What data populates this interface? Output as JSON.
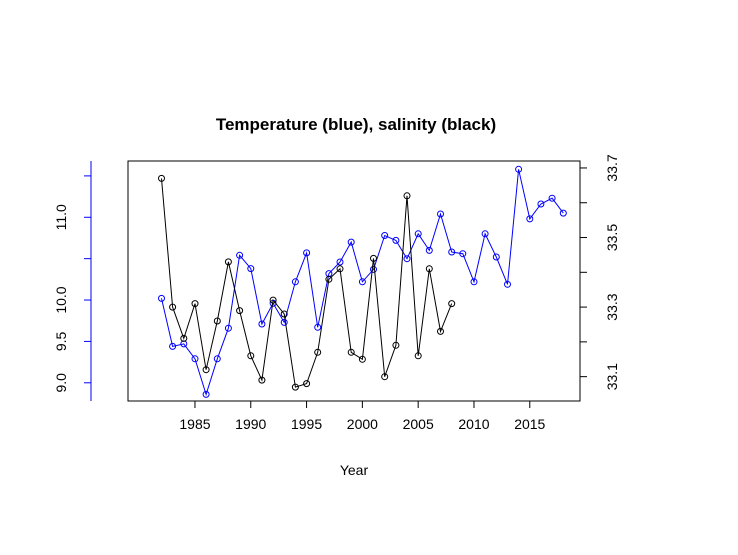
{
  "chart_data": {
    "type": "line",
    "title": "Temperature (blue), salinity (black)",
    "xlabel": "Year",
    "ylabel_left": "",
    "ylabel_right": "",
    "xlim": [
      1979,
      2019.5
    ],
    "ylim_left": [
      8.78,
      11.68
    ],
    "ylim_right": [
      33.03,
      33.72
    ],
    "x_ticks": [
      1985,
      1990,
      1995,
      2000,
      2005,
      2010,
      2015
    ],
    "y_left_ticks": [
      9.0,
      9.5,
      10.0,
      11.0
    ],
    "y_left_minor_ticks": [
      10.5,
      11.5
    ],
    "y_right_ticks": [
      33.1,
      33.3,
      33.5,
      33.7
    ],
    "y_right_minor_ticks": [
      33.2,
      33.4,
      33.6
    ],
    "grid": false,
    "colors": {
      "temperature": "#0000ff",
      "salinity": "#000000",
      "left_axis": "#0000ff"
    },
    "series": [
      {
        "name": "",
        "axis": "left",
        "color": "#0000ff",
        "x": [
          1982,
          1983,
          1984,
          1985,
          1986,
          1987,
          1988,
          1989,
          1990,
          1991,
          1992,
          1993,
          1994,
          1995,
          1996,
          1997,
          1998,
          1999,
          2000,
          2001,
          2002,
          2003,
          2004,
          2005,
          2006,
          2007,
          2008,
          2009,
          2010,
          2011,
          2012,
          2013,
          2014,
          2015,
          2016,
          2017,
          2018
        ],
        "y": [
          10.02,
          9.44,
          9.47,
          9.29,
          8.86,
          9.29,
          9.66,
          10.54,
          10.38,
          9.71,
          9.96,
          9.73,
          10.22,
          10.57,
          9.67,
          10.32,
          10.46,
          10.7,
          10.22,
          10.37,
          10.78,
          10.72,
          10.5,
          10.8,
          10.6,
          11.04,
          10.58,
          10.56,
          10.22,
          10.8,
          10.52,
          10.19,
          11.58,
          10.98,
          11.16,
          11.23,
          11.05
        ]
      },
      {
        "name": "",
        "axis": "right",
        "color": "#000000",
        "x": [
          1982,
          1983,
          1984,
          1985,
          1986,
          1987,
          1988,
          1989,
          1990,
          1991,
          1992,
          1993,
          1994,
          1995,
          1996,
          1997,
          1998,
          1999,
          2000,
          2001,
          2002,
          2003,
          2004,
          2005,
          2006,
          2007,
          2008
        ],
        "y": [
          33.67,
          33.3,
          33.21,
          33.31,
          33.12,
          33.26,
          33.43,
          33.29,
          33.16,
          33.09,
          33.32,
          33.28,
          33.07,
          33.08,
          33.17,
          33.38,
          33.41,
          33.17,
          33.15,
          33.44,
          33.1,
          33.19,
          33.62,
          33.16,
          33.41,
          33.23,
          33.31
        ]
      }
    ]
  }
}
